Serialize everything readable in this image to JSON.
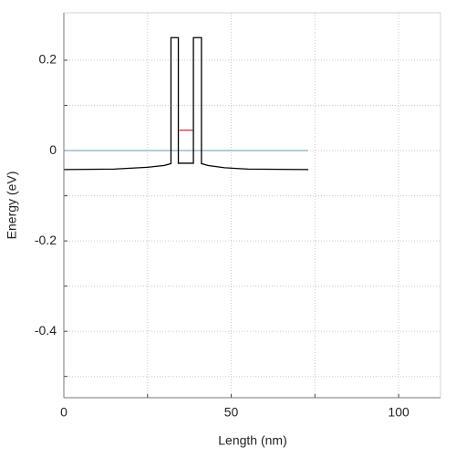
{
  "chart_data": {
    "type": "line",
    "xlabel": "Length (nm)",
    "ylabel": "Energy (eV)",
    "xlim": [
      0,
      112.5
    ],
    "ylim": [
      -0.547,
      0.305
    ],
    "xticks": [
      0,
      50,
      100
    ],
    "yticks": [
      0.2,
      0,
      -0.2,
      -0.4
    ],
    "xminorticks": [
      25,
      75
    ],
    "yminorticks": [
      0.1,
      -0.1,
      -0.3,
      -0.5
    ],
    "grid": true,
    "series": [
      {
        "color": "#8fb8c8",
        "x": [
          0,
          73
        ],
        "values": [
          0,
          0
        ]
      },
      {
        "color": "#000000",
        "x": [
          0,
          15,
          25,
          30,
          32,
          32,
          34.2,
          34.2,
          38.7,
          38.7,
          41.1,
          41.1,
          43,
          48,
          55,
          73
        ],
        "values": [
          -0.042,
          -0.041,
          -0.037,
          -0.033,
          -0.029,
          0.25,
          0.25,
          -0.028,
          -0.028,
          0.25,
          0.25,
          -0.029,
          -0.033,
          -0.038,
          -0.041,
          -0.042
        ]
      },
      {
        "color": "#cc3333",
        "x": [
          34.5,
          38.5
        ],
        "values": [
          0.045,
          0.045
        ]
      }
    ]
  }
}
